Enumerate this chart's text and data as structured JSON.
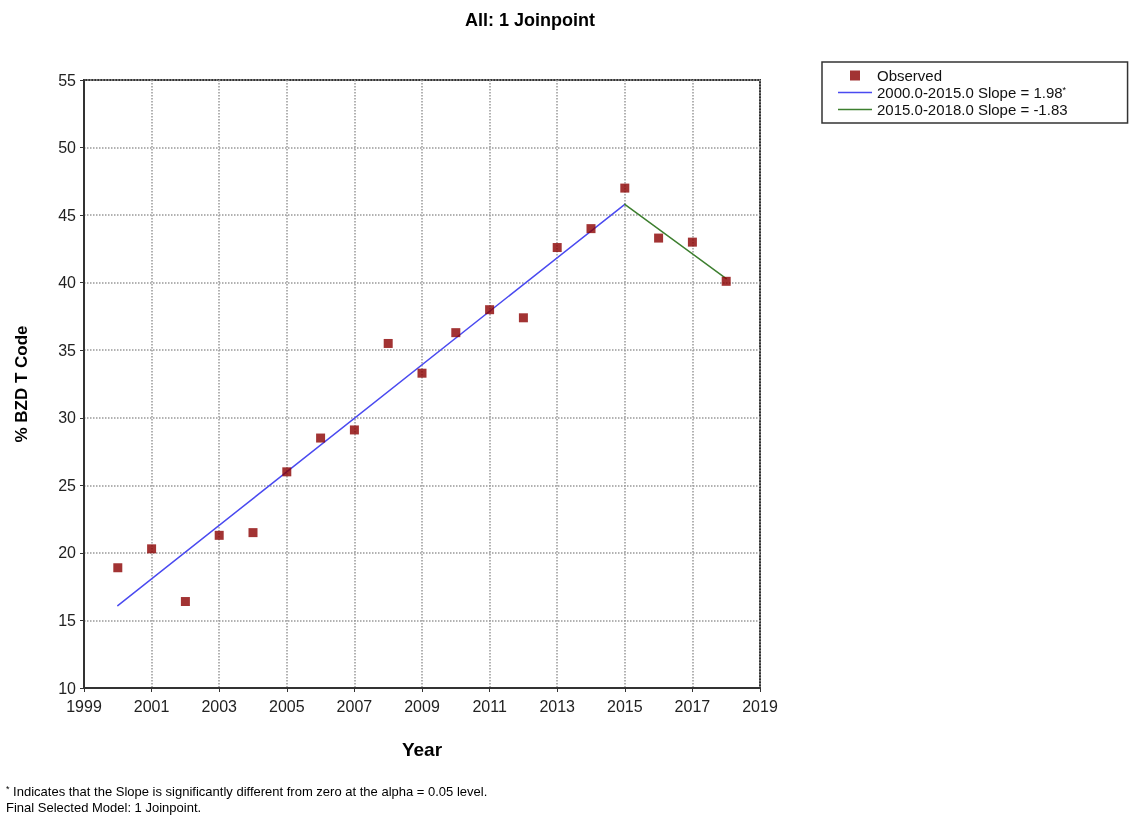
{
  "chart_data": {
    "type": "scatter",
    "title": "All: 1 Joinpoint",
    "xlabel": "Year",
    "ylabel": "% BZD T Code",
    "xlim": [
      1999,
      2019
    ],
    "xticks": [
      1999,
      2001,
      2003,
      2005,
      2007,
      2009,
      2011,
      2013,
      2015,
      2017,
      2019
    ],
    "ylim": [
      10,
      55
    ],
    "yticks": [
      10,
      15,
      20,
      25,
      30,
      35,
      40,
      45,
      50,
      55
    ],
    "grid": true,
    "legend": "top right",
    "series": [
      {
        "name": "Observed",
        "marker": "square",
        "color": "#8b0000",
        "x": [
          2000,
          2001,
          2002,
          2003,
          2004,
          2005,
          2006,
          2007,
          2008,
          2009,
          2010,
          2011,
          2012,
          2013,
          2014,
          2015,
          2016,
          2017,
          2018
        ],
        "values": [
          18.9,
          20.3,
          16.4,
          21.3,
          21.5,
          26.0,
          28.5,
          29.1,
          35.5,
          33.3,
          36.3,
          38.0,
          37.4,
          42.6,
          44.0,
          47.0,
          43.3,
          43.0,
          40.1
        ]
      },
      {
        "name": "2000.0-2015.0 Slope = 1.98$^{*}$",
        "type": "line",
        "marker": "none",
        "line_style": "solid",
        "color": "#4a4af0",
        "x": [
          2000,
          2015
        ],
        "values": [
          16.1,
          45.8
        ]
      },
      {
        "name": "2015.0-2018.0 Slope = -1.83",
        "type": "line",
        "marker": "none",
        "line_style": "solid",
        "color": "#3d7f2f",
        "x": [
          2015,
          2018
        ],
        "values": [
          45.8,
          40.3
        ]
      }
    ],
    "annotations": [
      "$^{*}$ Indicates that the Slope is significantly different from zero at the alpha = 0.05 level.",
      "Final Selected Model: 1 Joinpoint."
    ]
  }
}
